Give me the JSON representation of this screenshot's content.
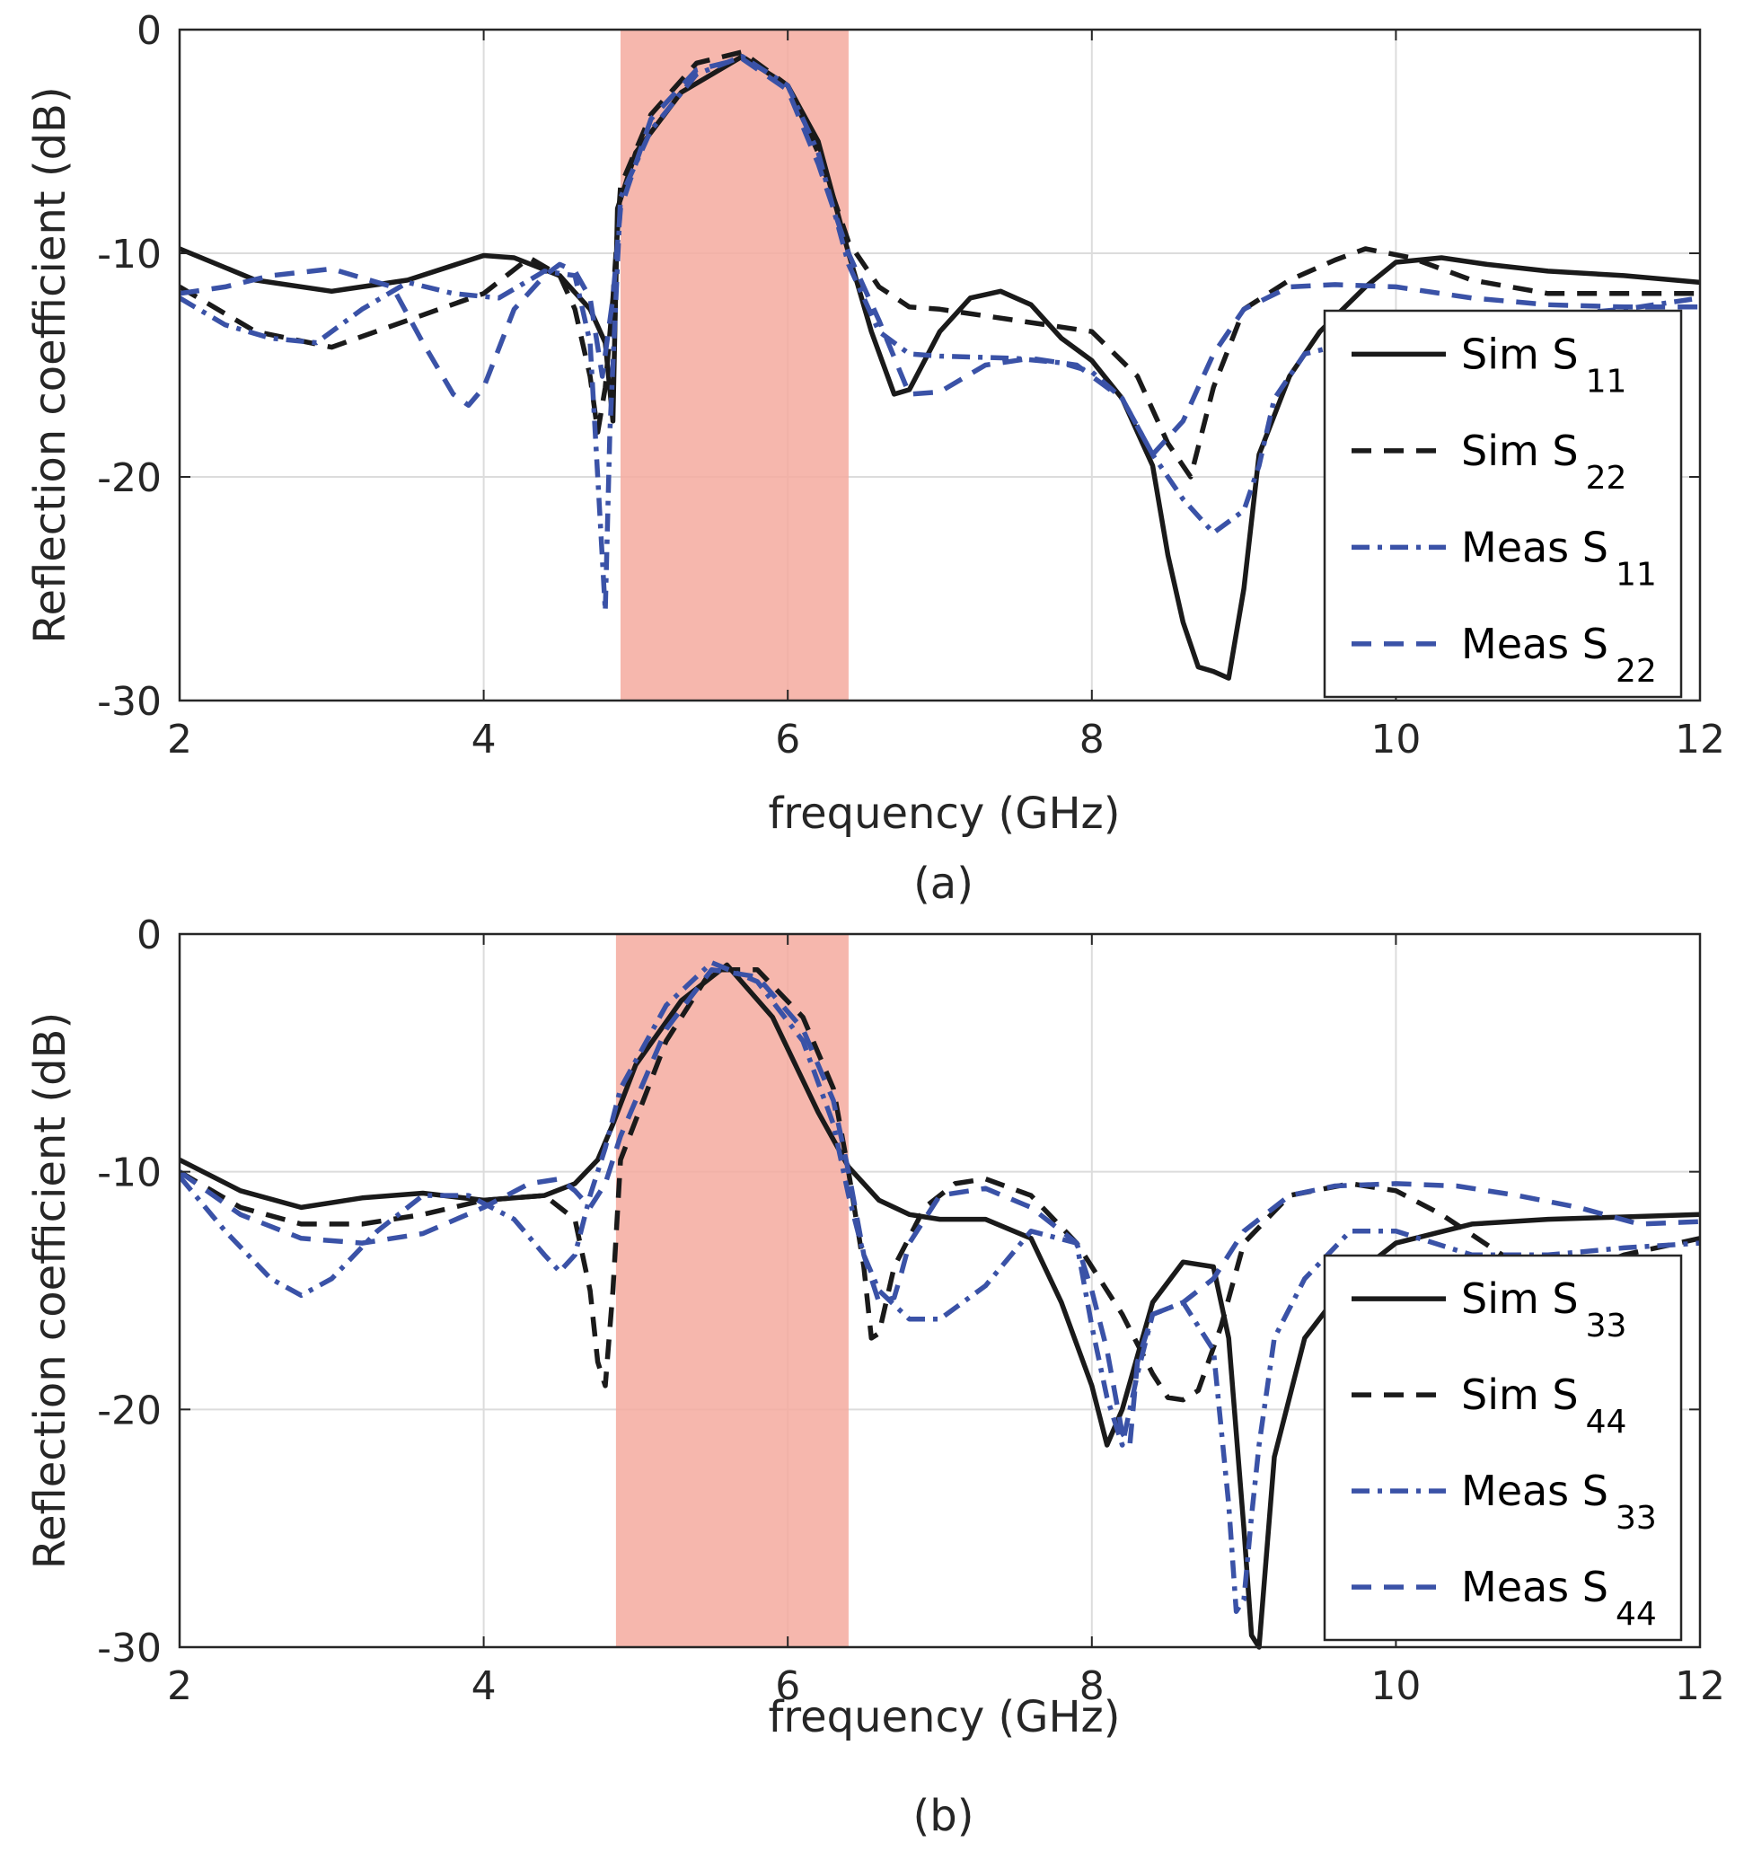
{
  "chart_data": [
    {
      "type": "line",
      "caption": "(a)",
      "xlabel": "frequency (GHz)",
      "ylabel": "Reflection coefficient  (dB)",
      "xlim": [
        2,
        12
      ],
      "ylim": [
        -30,
        0
      ],
      "xticks": [
        2,
        4,
        6,
        8,
        10,
        12
      ],
      "yticks": [
        0,
        -10,
        -20,
        -30
      ],
      "xtick_labels": [
        "2",
        "4",
        "6",
        "8",
        "10",
        "12"
      ],
      "ytick_labels": [
        "0",
        "-10",
        "-20",
        "-30"
      ],
      "grid": true,
      "legend_position": "right",
      "highlight_band": {
        "x": [
          4.9,
          6.4
        ],
        "color": "#f4aa9f"
      },
      "series": [
        {
          "name": "Sim S",
          "sub": "11",
          "color": "#1a1a1a",
          "style": "solid",
          "x": [
            2,
            2.5,
            3,
            3.5,
            4,
            4.2,
            4.5,
            4.7,
            4.8,
            4.85,
            4.88,
            5.0,
            5.3,
            5.7,
            6.0,
            6.2,
            6.4,
            6.55,
            6.7,
            6.8,
            7.0,
            7.2,
            7.4,
            7.6,
            7.8,
            8.0,
            8.2,
            8.4,
            8.5,
            8.6,
            8.7,
            8.8,
            8.9,
            9.0,
            9.1,
            9.3,
            9.5,
            9.8,
            10.0,
            10.3,
            10.6,
            11.0,
            11.5,
            12
          ],
          "y": [
            -9.8,
            -11.2,
            -11.7,
            -11.2,
            -10.1,
            -10.2,
            -11.0,
            -12.5,
            -14.0,
            -17.5,
            -8.0,
            -5.5,
            -2.8,
            -1.2,
            -2.5,
            -5.0,
            -10.0,
            -13.5,
            -16.3,
            -16.1,
            -13.5,
            -12.0,
            -11.7,
            -12.3,
            -13.8,
            -14.8,
            -16.5,
            -19.5,
            -23.5,
            -26.5,
            -28.5,
            -28.7,
            -29.0,
            -25.0,
            -19.0,
            -15.5,
            -13.5,
            -11.5,
            -10.4,
            -10.2,
            -10.5,
            -10.8,
            -11.0,
            -11.3
          ]
        },
        {
          "name": "Sim S",
          "sub": "22",
          "color": "#1a1a1a",
          "style": "dashed",
          "x": [
            2,
            2.5,
            3,
            3.5,
            4,
            4.3,
            4.5,
            4.6,
            4.7,
            4.75,
            4.8,
            4.85,
            4.9,
            5.1,
            5.4,
            5.7,
            6.0,
            6.2,
            6.4,
            6.6,
            6.8,
            7.0,
            7.5,
            8.0,
            8.3,
            8.5,
            8.65,
            8.8,
            9.0,
            9.3,
            9.6,
            9.8,
            10.1,
            10.5,
            11.0,
            11.5,
            12
          ],
          "y": [
            -11.5,
            -13.5,
            -14.2,
            -13.0,
            -11.8,
            -10.2,
            -11.0,
            -12.5,
            -15.5,
            -18.0,
            -16.0,
            -12.0,
            -7.0,
            -3.8,
            -1.5,
            -1.0,
            -2.5,
            -5.5,
            -9.5,
            -11.5,
            -12.4,
            -12.5,
            -13.0,
            -13.5,
            -15.5,
            -18.5,
            -20.0,
            -16.0,
            -12.5,
            -11.2,
            -10.3,
            -9.8,
            -10.2,
            -11.2,
            -11.8,
            -11.8,
            -11.8
          ]
        },
        {
          "name": "Meas S",
          "sub": "11",
          "color": "#3a52a7",
          "style": "dashdot",
          "x": [
            2,
            2.3,
            2.6,
            2.9,
            3.2,
            3.5,
            3.8,
            4.1,
            4.4,
            4.6,
            4.7,
            4.75,
            4.8,
            4.83,
            4.87,
            4.9,
            5.1,
            5.4,
            5.7,
            6.0,
            6.2,
            6.4,
            6.6,
            6.8,
            7.0,
            7.5,
            7.8,
            8.0,
            8.2,
            8.4,
            8.6,
            8.8,
            9.0,
            9.1,
            9.2,
            9.4,
            9.7,
            10.0,
            10.5,
            11.0,
            11.5,
            12
          ],
          "y": [
            -12.0,
            -13.2,
            -13.8,
            -14.0,
            -12.5,
            -11.3,
            -11.8,
            -12.0,
            -10.8,
            -11.0,
            -14.0,
            -20.0,
            -26.0,
            -18.0,
            -12.0,
            -7.5,
            -4.5,
            -2.0,
            -1.2,
            -2.5,
            -5.5,
            -10.5,
            -13.5,
            -14.5,
            -14.6,
            -14.7,
            -14.9,
            -15.3,
            -16.5,
            -19.0,
            -21.0,
            -22.5,
            -21.5,
            -19.5,
            -16.5,
            -14.5,
            -14.0,
            -13.5,
            -13.0,
            -12.8,
            -12.5,
            -12.0
          ]
        },
        {
          "name": "Meas S",
          "sub": "22",
          "color": "#3a52a7",
          "style": "dashed",
          "x": [
            2,
            2.3,
            2.6,
            3.0,
            3.4,
            3.6,
            3.8,
            3.9,
            4.0,
            4.2,
            4.4,
            4.5,
            4.6,
            4.7,
            4.78,
            4.85,
            4.9,
            5.1,
            5.4,
            5.7,
            6.0,
            6.2,
            6.4,
            6.6,
            6.8,
            7.0,
            7.3,
            7.6,
            7.9,
            8.2,
            8.4,
            8.6,
            8.8,
            9.0,
            9.3,
            9.6,
            10.0,
            10.5,
            11.0,
            11.5,
            12
          ],
          "y": [
            -11.8,
            -11.5,
            -11.0,
            -10.7,
            -11.5,
            -14.0,
            -16.3,
            -16.8,
            -16.0,
            -12.5,
            -11.0,
            -10.5,
            -10.8,
            -12.0,
            -15.5,
            -12.0,
            -8.0,
            -4.0,
            -1.8,
            -1.3,
            -2.7,
            -6.0,
            -10.0,
            -13.0,
            -16.3,
            -16.2,
            -15.0,
            -14.7,
            -15.0,
            -16.5,
            -19.0,
            -17.5,
            -14.5,
            -12.5,
            -11.5,
            -11.4,
            -11.5,
            -12.0,
            -12.3,
            -12.4,
            -12.4
          ]
        }
      ]
    },
    {
      "type": "line",
      "caption": "(b)",
      "xlabel": "frequency (GHz)",
      "ylabel": "Reflection coefficient  (dB)",
      "xlim": [
        2,
        12
      ],
      "ylim": [
        -30,
        0
      ],
      "xticks": [
        2,
        4,
        6,
        8,
        10,
        12
      ],
      "yticks": [
        0,
        -10,
        -20,
        -30
      ],
      "xtick_labels": [
        "2",
        "4",
        "6",
        "8",
        "10",
        "12"
      ],
      "ytick_labels": [
        "0",
        "-10",
        "-20",
        "-30"
      ],
      "grid": true,
      "legend_position": "right",
      "highlight_band": {
        "x": [
          4.87,
          6.4
        ],
        "color": "#f4aa9f"
      },
      "series": [
        {
          "name": "Sim S",
          "sub": "33",
          "color": "#1a1a1a",
          "style": "solid",
          "x": [
            2,
            2.4,
            2.8,
            3.2,
            3.6,
            4.0,
            4.4,
            4.6,
            4.75,
            4.85,
            5.0,
            5.3,
            5.6,
            5.9,
            6.2,
            6.4,
            6.6,
            6.8,
            7.0,
            7.3,
            7.6,
            7.8,
            8.0,
            8.1,
            8.2,
            8.4,
            8.6,
            8.8,
            8.9,
            9.0,
            9.05,
            9.1,
            9.2,
            9.4,
            9.7,
            10.0,
            10.5,
            11.0,
            11.5,
            12
          ],
          "y": [
            -9.5,
            -10.8,
            -11.5,
            -11.1,
            -10.9,
            -11.2,
            -11.0,
            -10.5,
            -9.5,
            -8.0,
            -5.5,
            -2.8,
            -1.3,
            -3.5,
            -7.5,
            -9.8,
            -11.2,
            -11.8,
            -12.0,
            -12.0,
            -12.8,
            -15.5,
            -19.0,
            -21.5,
            -20.0,
            -15.5,
            -13.8,
            -14.0,
            -17.0,
            -25.0,
            -29.5,
            -30.0,
            -22.0,
            -17.0,
            -14.5,
            -13.0,
            -12.2,
            -12.0,
            -11.9,
            -11.8
          ]
        },
        {
          "name": "Sim S",
          "sub": "44",
          "color": "#1a1a1a",
          "style": "dashed",
          "x": [
            2,
            2.4,
            2.8,
            3.2,
            3.6,
            4.0,
            4.4,
            4.6,
            4.7,
            4.75,
            4.8,
            4.85,
            4.9,
            5.2,
            5.5,
            5.8,
            6.1,
            6.3,
            6.4,
            6.5,
            6.55,
            6.6,
            6.7,
            6.9,
            7.1,
            7.3,
            7.6,
            7.9,
            8.2,
            8.4,
            8.5,
            8.6,
            8.7,
            8.85,
            9.0,
            9.3,
            9.7,
            10.0,
            10.3,
            10.7,
            11.1,
            11.5,
            12
          ],
          "y": [
            -10.0,
            -11.5,
            -12.2,
            -12.2,
            -11.8,
            -11.2,
            -11.0,
            -12.0,
            -15.0,
            -18.0,
            -19.0,
            -15.0,
            -9.5,
            -4.5,
            -1.5,
            -1.5,
            -3.5,
            -6.5,
            -10.0,
            -14.0,
            -17.0,
            -16.8,
            -14.0,
            -11.5,
            -10.5,
            -10.3,
            -11.0,
            -13.0,
            -16.0,
            -18.5,
            -19.5,
            -19.6,
            -19.2,
            -16.5,
            -13.0,
            -11.0,
            -10.5,
            -10.8,
            -11.8,
            -13.5,
            -14.5,
            -13.5,
            -12.8
          ]
        },
        {
          "name": "Meas S",
          "sub": "33",
          "color": "#3a52a7",
          "style": "dashdot",
          "x": [
            2,
            2.3,
            2.6,
            2.8,
            3.0,
            3.3,
            3.6,
            3.9,
            4.2,
            4.4,
            4.5,
            4.6,
            4.7,
            4.8,
            4.9,
            5.2,
            5.5,
            5.8,
            6.1,
            6.3,
            6.4,
            6.5,
            6.6,
            6.8,
            7.0,
            7.3,
            7.6,
            7.9,
            8.0,
            8.1,
            8.2,
            8.3,
            8.4,
            8.6,
            8.8,
            8.9,
            8.95,
            9.0,
            9.05,
            9.1,
            9.2,
            9.4,
            9.7,
            10.0,
            10.5,
            11.0,
            11.5,
            12
          ],
          "y": [
            -10.2,
            -12.5,
            -14.5,
            -15.2,
            -14.5,
            -12.5,
            -11.0,
            -11.0,
            -12.0,
            -13.5,
            -14.2,
            -13.5,
            -11.0,
            -9.0,
            -6.5,
            -3.0,
            -1.2,
            -2.0,
            -4.5,
            -8.0,
            -11.0,
            -13.5,
            -15.0,
            -16.2,
            -16.2,
            -14.8,
            -12.5,
            -13.0,
            -16.5,
            -19.5,
            -21.5,
            -18.5,
            -16.0,
            -15.5,
            -17.5,
            -24.0,
            -28.5,
            -28.0,
            -24.5,
            -21.5,
            -17.0,
            -14.5,
            -12.5,
            -12.5,
            -13.5,
            -13.5,
            -13.2,
            -13.0
          ]
        },
        {
          "name": "Meas S",
          "sub": "44",
          "color": "#3a52a7",
          "style": "dashed",
          "x": [
            2,
            2.4,
            2.8,
            3.2,
            3.6,
            4.0,
            4.3,
            4.5,
            4.6,
            4.7,
            4.8,
            4.9,
            5.2,
            5.5,
            5.8,
            6.1,
            6.3,
            6.4,
            6.5,
            6.6,
            6.7,
            6.75,
            6.8,
            7.0,
            7.3,
            7.6,
            7.9,
            8.0,
            8.1,
            8.2,
            8.25,
            8.3,
            8.4,
            8.6,
            8.8,
            9.0,
            9.3,
            9.6,
            10.0,
            10.4,
            10.8,
            11.2,
            11.6,
            12
          ],
          "y": [
            -10.0,
            -11.8,
            -12.8,
            -13.0,
            -12.6,
            -11.5,
            -10.5,
            -10.3,
            -10.8,
            -11.5,
            -10.5,
            -8.5,
            -4.0,
            -1.5,
            -1.8,
            -4.0,
            -7.0,
            -10.0,
            -13.5,
            -15.5,
            -15.3,
            -14.2,
            -13.0,
            -11.0,
            -10.7,
            -11.5,
            -13.0,
            -15.0,
            -17.5,
            -21.0,
            -21.5,
            -18.0,
            -16.0,
            -15.5,
            -14.5,
            -12.5,
            -11.0,
            -10.6,
            -10.5,
            -10.6,
            -11.0,
            -11.5,
            -12.2,
            -12.1
          ]
        }
      ]
    }
  ]
}
